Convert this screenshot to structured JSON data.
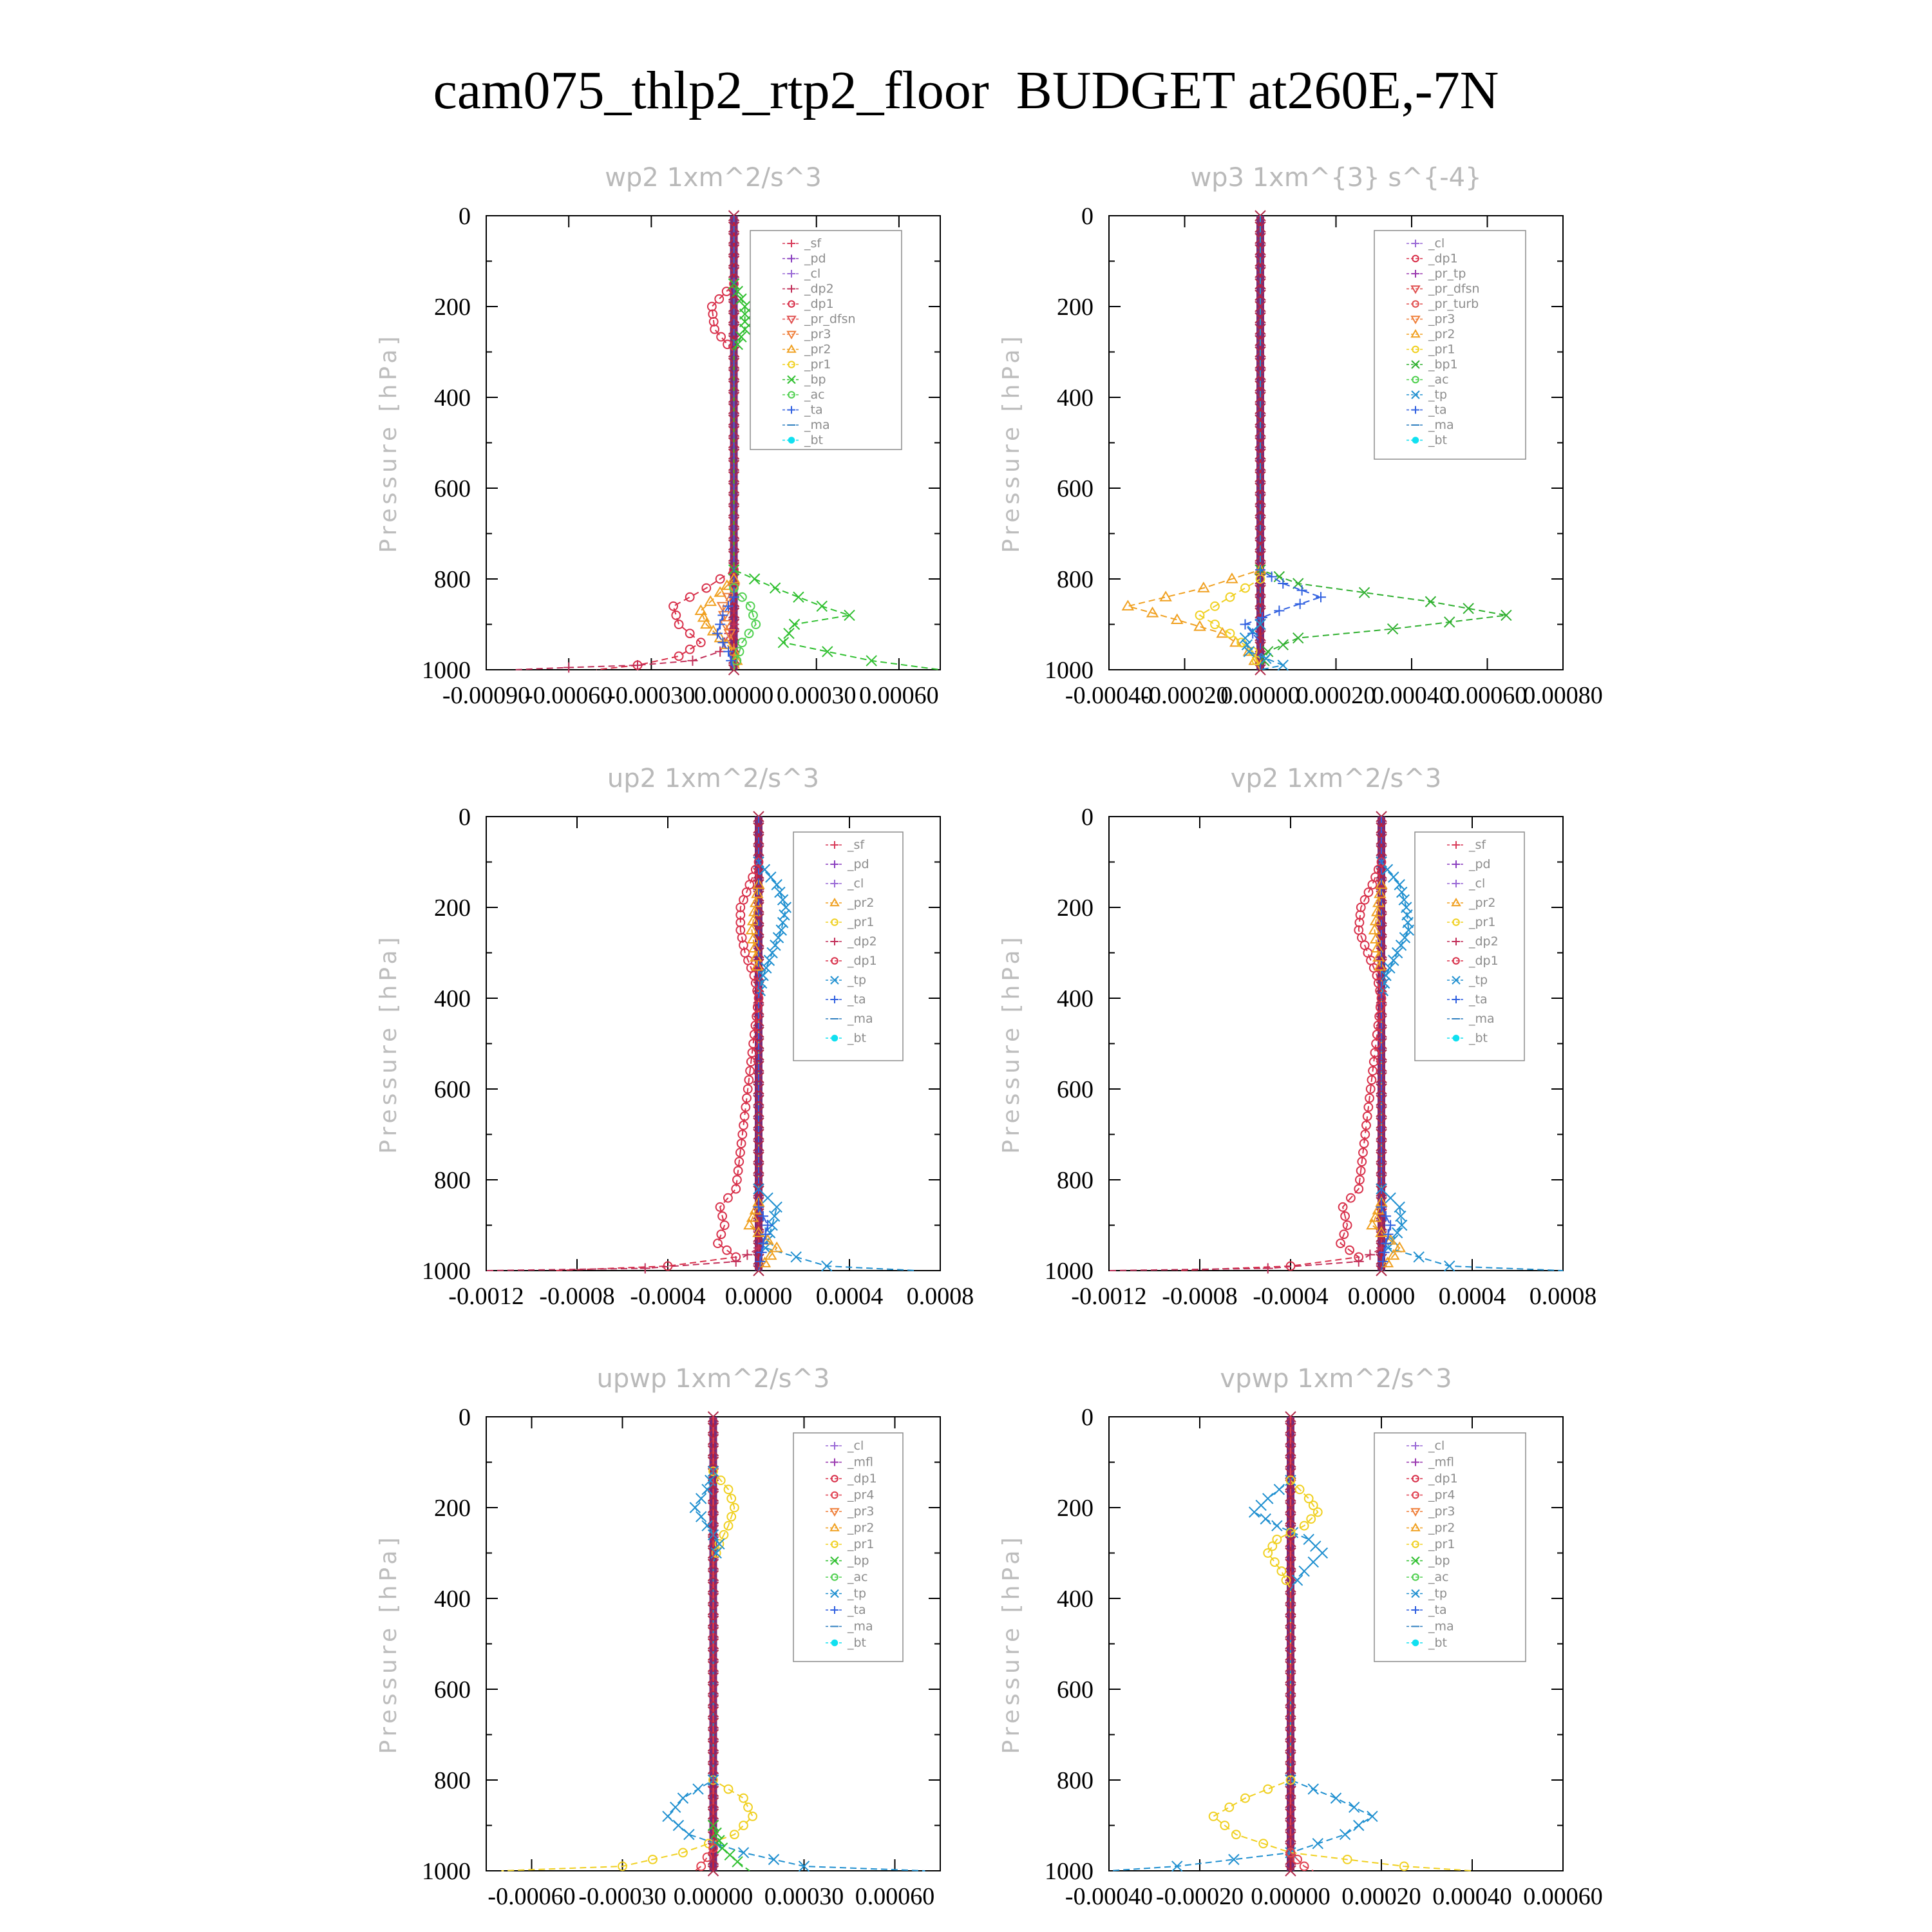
{
  "title": "cam075_thlp2_rtp2_floor  BUDGET at260E,-7N",
  "chart_data": [
    {
      "type": "line",
      "title": "wp2   1xm^2/s^3",
      "ylabel": "Pressure [hPa]",
      "ylim": [
        0,
        1000
      ],
      "y_inverted": true,
      "yticks": [
        "0",
        "200",
        "400",
        "600",
        "800",
        "1000"
      ],
      "xlim": [
        -0.0009,
        0.00075
      ],
      "xticks": [
        -0.0009,
        -0.0006,
        -0.0003,
        0.0,
        0.0003,
        0.0006
      ],
      "xtick_labels": [
        "-0.00090",
        "-0.00060",
        "-0.00030",
        "0.00000",
        "0.00030",
        "0.00060"
      ],
      "legend": [
        "_sf",
        "_pd",
        "_cl",
        "_dp2",
        "_dp1",
        "_pr_dfsn",
        "_pr3",
        "_pr2",
        "_pr1",
        "_bp",
        "_ac",
        "_ta",
        "_ma",
        "_bt"
      ],
      "series": [
        {
          "name": "_dp1",
          "y": [
            0,
            150,
            200,
            250,
            300,
            400,
            780,
            820,
            860,
            900,
            940,
            970,
            990,
            1000
          ],
          "x": [
            0,
            0,
            -8e-05,
            -7e-05,
            0,
            0,
            0,
            -0.0001,
            -0.00022,
            -0.0002,
            -0.00012,
            -0.0002,
            -0.00035,
            -0.0005
          ]
        },
        {
          "name": "_bp",
          "y": [
            0,
            150,
            200,
            250,
            300,
            400,
            780,
            820,
            860,
            880,
            900,
            940,
            980,
            1000
          ],
          "x": [
            0,
            0,
            4e-05,
            4e-05,
            0,
            0,
            0,
            0.00015,
            0.00032,
            0.00042,
            0.00022,
            0.00018,
            0.0005,
            0.00075
          ]
        },
        {
          "name": "_dp2",
          "y": [
            0,
            900,
            960,
            980,
            990,
            995,
            1000
          ],
          "x": [
            0,
            0,
            -5e-05,
            -0.00015,
            -0.00035,
            -0.0006,
            -0.0008
          ]
        },
        {
          "name": "_pr2",
          "y": [
            0,
            800,
            830,
            870,
            900,
            930,
            960,
            1000
          ],
          "x": [
            0,
            0,
            -5e-05,
            -0.00012,
            -0.0001,
            -5e-05,
            0,
            2e-05
          ]
        },
        {
          "name": "_pr3",
          "y": [
            0,
            820,
            860,
            900,
            940,
            1000
          ],
          "x": [
            0,
            0,
            -4e-05,
            -3e-05,
            0,
            0
          ]
        },
        {
          "name": "_ac",
          "y": [
            0,
            820,
            860,
            900,
            940,
            1000
          ],
          "x": [
            0,
            0,
            6e-05,
            8e-05,
            3e-05,
            0
          ]
        },
        {
          "name": "_ta",
          "y": [
            0,
            840,
            880,
            920,
            960,
            1000
          ],
          "x": [
            0,
            0,
            -4e-05,
            -6e-05,
            -2e-05,
            0
          ]
        }
      ]
    },
    {
      "type": "line",
      "title": "wp3   1xm^{3} s^{-4}",
      "ylabel": "Pressure [hPa]",
      "ylim": [
        0,
        1000
      ],
      "y_inverted": true,
      "yticks": [
        "0",
        "200",
        "400",
        "600",
        "800",
        "1000"
      ],
      "xlim": [
        -0.0004,
        0.0008
      ],
      "xticks": [
        -0.0004,
        -0.0002,
        0.0,
        0.0002,
        0.0004,
        0.0006,
        0.0008
      ],
      "xtick_labels": [
        "-0.00040",
        "-0.00020",
        "0.00000",
        "0.00020",
        "0.00040",
        "0.00060",
        "0.00080"
      ],
      "legend": [
        "_cl",
        "_dp1",
        "_pr_tp",
        "_pr_dfsn",
        "_pr_turb",
        "_pr3",
        "_pr2",
        "_pr1",
        "_bp1",
        "_ac",
        "_tp",
        "_ta",
        "_ma",
        "_bt"
      ],
      "series": [
        {
          "name": "_bp1",
          "y": [
            0,
            780,
            810,
            850,
            880,
            910,
            930,
            960,
            1000
          ],
          "x": [
            0,
            0,
            0.0001,
            0.00045,
            0.00065,
            0.00035,
            0.0001,
            2e-05,
            0
          ]
        },
        {
          "name": "_pr2",
          "y": [
            0,
            780,
            820,
            860,
            890,
            920,
            960,
            1000
          ],
          "x": [
            0,
            0,
            -0.00015,
            -0.00035,
            -0.00022,
            -0.0001,
            -3e-05,
            0
          ]
        },
        {
          "name": "_pr1",
          "y": [
            0,
            800,
            840,
            880,
            920,
            960,
            1000
          ],
          "x": [
            0,
            0,
            -8e-05,
            -0.00016,
            -8e-05,
            -2e-05,
            0
          ]
        },
        {
          "name": "_ta",
          "y": [
            0,
            780,
            810,
            840,
            870,
            900,
            940,
            1000
          ],
          "x": [
            0,
            0,
            6e-05,
            0.00016,
            5e-05,
            -4e-05,
            0,
            0
          ]
        },
        {
          "name": "_tp",
          "y": [
            0,
            900,
            930,
            960,
            990,
            1000
          ],
          "x": [
            0,
            0,
            -4e-05,
            -3e-05,
            6e-05,
            0
          ]
        }
      ]
    },
    {
      "type": "line",
      "title": "up2   1xm^2/s^3",
      "ylabel": "Pressure [hPa]",
      "ylim": [
        0,
        1000
      ],
      "y_inverted": true,
      "yticks": [
        "0",
        "200",
        "400",
        "600",
        "800",
        "1000"
      ],
      "xlim": [
        -0.0012,
        0.0008
      ],
      "xticks": [
        -0.0012,
        -0.0008,
        -0.0004,
        0.0,
        0.0004,
        0.0008
      ],
      "xtick_labels": [
        "-0.0012",
        "-0.0008",
        "-0.0004",
        "0.0000",
        "0.0004",
        "0.0008"
      ],
      "legend": [
        "_sf",
        "_pd",
        "_cl",
        "_pr2",
        "_pr1",
        "_dp2",
        "_dp1",
        "_tp",
        "_ta",
        "_ma",
        "_bt"
      ],
      "series": [
        {
          "name": "_tp",
          "y": [
            0,
            100,
            150,
            200,
            250,
            300,
            350,
            400,
            820,
            860,
            900,
            950,
            990,
            1000
          ],
          "x": [
            0,
            0,
            8e-05,
            0.00012,
            0.0001,
            6e-05,
            2e-05,
            0,
            0,
            8e-05,
            6e-05,
            3e-05,
            0.0003,
            0.0007
          ]
        },
        {
          "name": "_dp1",
          "y": [
            0,
            100,
            150,
            200,
            250,
            300,
            350,
            400,
            820,
            860,
            900,
            940,
            970,
            990,
            1000
          ],
          "x": [
            0,
            0,
            -4e-05,
            -8e-05,
            -8e-05,
            -6e-05,
            -2e-05,
            0,
            -0.0001,
            -0.00017,
            -0.00015,
            -0.00018,
            -0.0001,
            -0.0004,
            -0.0009
          ]
        },
        {
          "name": "_dp2",
          "y": [
            0,
            950,
            980,
            995,
            1000
          ],
          "x": [
            0,
            0,
            -0.0001,
            -0.0005,
            -0.0012
          ]
        },
        {
          "name": "_pr2",
          "y": [
            0,
            150,
            250,
            350,
            850,
            900,
            950,
            1000
          ],
          "x": [
            0,
            0,
            -3e-05,
            0,
            0,
            -4e-05,
            8e-05,
            0
          ]
        },
        {
          "name": "_ta",
          "y": [
            0,
            860,
            900,
            940,
            1000
          ],
          "x": [
            0,
            0,
            4e-05,
            2e-05,
            0
          ]
        }
      ]
    },
    {
      "type": "line",
      "title": "vp2   1xm^2/s^3",
      "ylabel": "Pressure [hPa]",
      "ylim": [
        0,
        1000
      ],
      "y_inverted": true,
      "yticks": [
        "0",
        "200",
        "400",
        "600",
        "800",
        "1000"
      ],
      "xlim": [
        -0.0012,
        0.0008
      ],
      "xticks": [
        -0.0012,
        -0.0008,
        -0.0004,
        0.0,
        0.0004,
        0.0008
      ],
      "xtick_labels": [
        "-0.0012",
        "-0.0008",
        "-0.0004",
        "0.0000",
        "0.0004",
        "0.0008"
      ],
      "legend": [
        "_sf",
        "_pd",
        "_cl",
        "_pr2",
        "_pr1",
        "_dp2",
        "_dp1",
        "_tp",
        "_ta",
        "_ma",
        "_bt"
      ],
      "series": [
        {
          "name": "_tp",
          "y": [
            0,
            100,
            150,
            200,
            250,
            300,
            350,
            400,
            820,
            860,
            900,
            950,
            990,
            1000
          ],
          "x": [
            0,
            0,
            8e-05,
            0.00011,
            0.00012,
            7e-05,
            2e-05,
            0,
            0,
            8e-05,
            9e-05,
            3e-05,
            0.0003,
            0.0008
          ]
        },
        {
          "name": "_dp1",
          "y": [
            0,
            100,
            150,
            200,
            250,
            300,
            350,
            400,
            820,
            860,
            900,
            940,
            970,
            990,
            1000
          ],
          "x": [
            0,
            0,
            -4e-05,
            -9e-05,
            -0.0001,
            -6e-05,
            -2e-05,
            0,
            -0.0001,
            -0.00017,
            -0.00015,
            -0.00018,
            -0.0001,
            -0.0004,
            -0.0009
          ]
        },
        {
          "name": "_dp2",
          "y": [
            0,
            950,
            980,
            995,
            1000
          ],
          "x": [
            0,
            0,
            -0.0001,
            -0.0005,
            -0.0012
          ]
        },
        {
          "name": "_pr2",
          "y": [
            0,
            150,
            250,
            350,
            850,
            900,
            950,
            1000
          ],
          "x": [
            0,
            0,
            -3e-05,
            0,
            0,
            -4e-05,
            8e-05,
            0
          ]
        },
        {
          "name": "_ta",
          "y": [
            0,
            860,
            900,
            940,
            1000
          ],
          "x": [
            0,
            0,
            4e-05,
            2e-05,
            0
          ]
        }
      ]
    },
    {
      "type": "line",
      "title": "upwp   1xm^2/s^3",
      "ylabel": "Pressure [hPa]",
      "ylim": [
        0,
        1000
      ],
      "y_inverted": true,
      "yticks": [
        "0",
        "200",
        "400",
        "600",
        "800",
        "1000"
      ],
      "xlim": [
        -0.00075,
        0.00075
      ],
      "xticks": [
        -0.0006,
        -0.0003,
        0.0,
        0.0003,
        0.0006
      ],
      "xtick_labels": [
        "-0.00060",
        "-0.00030",
        "0.00000",
        "0.00030",
        "0.00060"
      ],
      "legend": [
        "_cl",
        "_mfl",
        "_dp1",
        "_pr4",
        "_pr3",
        "_pr2",
        "_pr1",
        "_bp",
        "_ac",
        "_tp",
        "_ta",
        "_ma",
        "_bt"
      ],
      "series": [
        {
          "name": "_pr1",
          "y": [
            0,
            120,
            160,
            200,
            240,
            280,
            320,
            800,
            840,
            880,
            920,
            960,
            990,
            1000
          ],
          "x": [
            0,
            0,
            5e-05,
            7e-05,
            5e-05,
            2e-05,
            0,
            0,
            0.0001,
            0.00013,
            7e-05,
            -0.0001,
            -0.0003,
            -0.0007
          ]
        },
        {
          "name": "_tp",
          "y": [
            0,
            120,
            160,
            200,
            240,
            280,
            320,
            800,
            840,
            880,
            920,
            960,
            990,
            1000
          ],
          "x": [
            0,
            0,
            -2e-05,
            -6e-05,
            -2e-05,
            2e-05,
            0,
            0,
            -0.0001,
            -0.00015,
            -8e-05,
            0.0001,
            0.0003,
            0.0007
          ]
        },
        {
          "name": "_bp",
          "y": [
            0,
            900,
            950,
            980,
            1000
          ],
          "x": [
            0,
            0,
            3e-05,
            8e-05,
            0.00012
          ]
        },
        {
          "name": "_pr4",
          "y": [
            0,
            950,
            990,
            1000
          ],
          "x": [
            0,
            0,
            -4e-05,
            -6e-05
          ]
        }
      ]
    },
    {
      "type": "line",
      "title": "vpwp   1xm^2/s^3",
      "ylabel": "Pressure [hPa]",
      "ylim": [
        0,
        1000
      ],
      "y_inverted": true,
      "yticks": [
        "0",
        "200",
        "400",
        "600",
        "800",
        "1000"
      ],
      "xlim": [
        -0.0004,
        0.0006
      ],
      "xticks": [
        -0.0004,
        -0.0002,
        0.0,
        0.0002,
        0.0004,
        0.0006
      ],
      "xtick_labels": [
        "-0.00040",
        "-0.00020",
        "0.00000",
        "0.00020",
        "0.00040",
        "0.00060"
      ],
      "legend": [
        "_cl",
        "_mfl",
        "_dp1",
        "_pr4",
        "_pr3",
        "_pr2",
        "_pr1",
        "_bp",
        "_ac",
        "_tp",
        "_ta",
        "_ma",
        "_bt"
      ],
      "series": [
        {
          "name": "_tp",
          "y": [
            0,
            140,
            180,
            210,
            240,
            270,
            300,
            340,
            380,
            800,
            840,
            880,
            920,
            960,
            990,
            1000
          ],
          "x": [
            0,
            0,
            -5e-05,
            -8e-05,
            -3e-05,
            4e-05,
            7e-05,
            3e-05,
            0,
            0,
            0.0001,
            0.00018,
            0.00012,
            0,
            -0.00025,
            -0.0004
          ]
        },
        {
          "name": "_pr1",
          "y": [
            0,
            140,
            180,
            210,
            240,
            270,
            300,
            340,
            380,
            800,
            840,
            880,
            920,
            960,
            990,
            1000
          ],
          "x": [
            0,
            0,
            4e-05,
            6e-05,
            3e-05,
            -3e-05,
            -5e-05,
            -2e-05,
            0,
            0,
            -0.0001,
            -0.00017,
            -0.00012,
            0,
            0.00025,
            0.0004
          ]
        },
        {
          "name": "_pr4",
          "y": [
            0,
            960,
            990,
            1000
          ],
          "x": [
            0,
            0,
            3e-05,
            5e-05
          ]
        }
      ]
    }
  ],
  "legend_style": {
    "_sf": {
      "color": "#d83c5a",
      "marker": "+"
    },
    "_pd": {
      "color": "#8a3fbf",
      "marker": "+"
    },
    "_cl": {
      "color": "#9a6ad6",
      "marker": "+"
    },
    "_mfl": {
      "color": "#9b3bb0",
      "marker": "+"
    },
    "_dp2": {
      "color": "#c2305a",
      "marker": "+"
    },
    "_dp1": {
      "color": "#d8304a",
      "marker": "o"
    },
    "_pr_dfsn": {
      "color": "#e05050",
      "marker": "v"
    },
    "_pr_tp": {
      "color": "#9b3bb0",
      "marker": "+"
    },
    "_pr_turb": {
      "color": "#e05050",
      "marker": "o"
    },
    "_pr4": {
      "color": "#e04050",
      "marker": "o"
    },
    "_pr3": {
      "color": "#ef7f3a",
      "marker": "v"
    },
    "_pr2": {
      "color": "#f0a020",
      "marker": "^"
    },
    "_pr1": {
      "color": "#f0d020",
      "marker": "o"
    },
    "_bp": {
      "color": "#30c030",
      "marker": "x"
    },
    "_bp1": {
      "color": "#30b030",
      "marker": "x"
    },
    "_ac": {
      "color": "#50d050",
      "marker": "o"
    },
    "_tp": {
      "color": "#2090d0",
      "marker": "x"
    },
    "_ta": {
      "color": "#3060e0",
      "marker": "+"
    },
    "_ma": {
      "color": "#3080c0",
      "marker": "-"
    },
    "_bt": {
      "color": "#10e0f0",
      "marker": "dot"
    }
  }
}
